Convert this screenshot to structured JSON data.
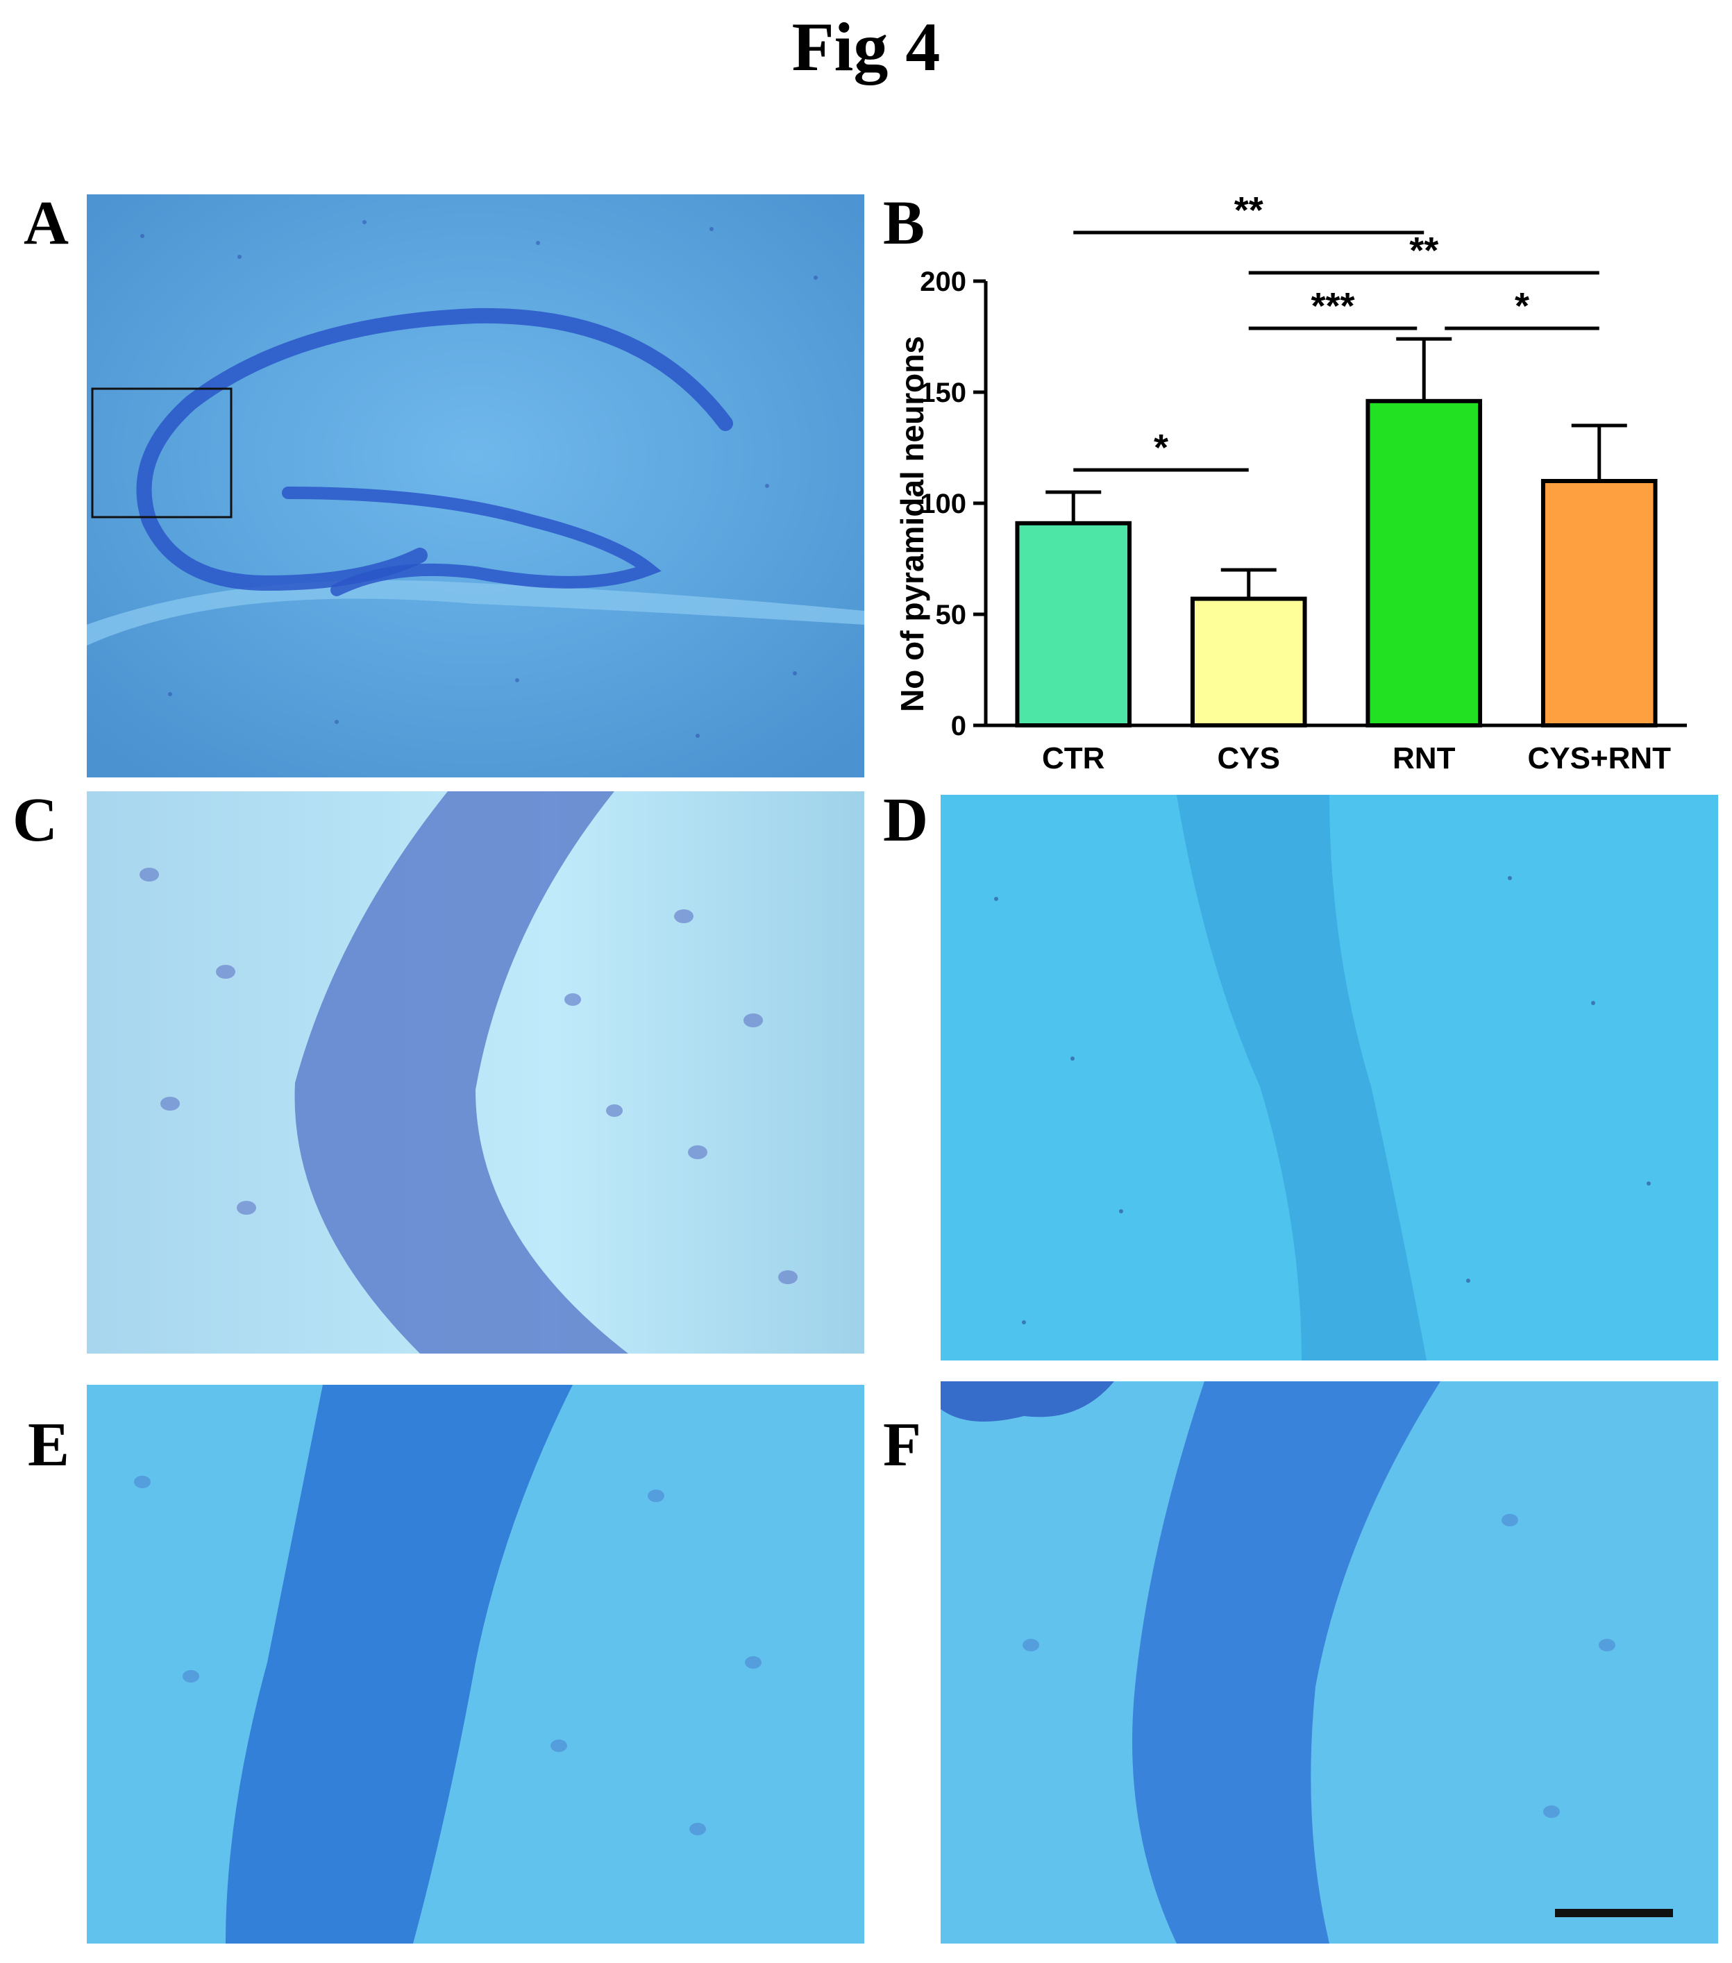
{
  "figure": {
    "title": "Fig 4"
  },
  "panels": {
    "A": {
      "label": "A"
    },
    "B": {
      "label": "B"
    },
    "C": {
      "label": "C"
    },
    "D": {
      "label": "D"
    },
    "E": {
      "label": "E"
    },
    "F": {
      "label": "F"
    }
  },
  "colors": {
    "tissue_light": "#5aa6e0",
    "tissue_cyan": "#4dc3ee",
    "cells_dark": "#2a56c8",
    "bar_CTR": "#4ee6a6",
    "bar_CYS": "#ffff99",
    "bar_RNT": "#22e022",
    "bar_CYS_RNT": "#ffa040"
  },
  "chart_data": {
    "type": "bar",
    "title": "",
    "xlabel": "",
    "ylabel": "No of pyramidal neurons",
    "ylim": [
      0,
      200
    ],
    "yticks": [
      0,
      50,
      100,
      150,
      200
    ],
    "categories": [
      "CTR",
      "CYS",
      "RNT",
      "CYS+RNT"
    ],
    "values": [
      91,
      57,
      146,
      110
    ],
    "errors": [
      14,
      13,
      28,
      25
    ],
    "bar_colors": [
      "#4ee6a6",
      "#ffff99",
      "#22e022",
      "#ffa040"
    ],
    "significance": [
      {
        "from": "CTR",
        "to": "CYS",
        "label": "*"
      },
      {
        "from": "CTR",
        "to": "RNT",
        "label": "**"
      },
      {
        "from": "CYS",
        "to": "CYS+RNT",
        "label": "**"
      },
      {
        "from": "CYS",
        "to": "RNT",
        "label": "***"
      },
      {
        "from": "RNT",
        "to": "CYS+RNT",
        "label": "*"
      }
    ]
  }
}
